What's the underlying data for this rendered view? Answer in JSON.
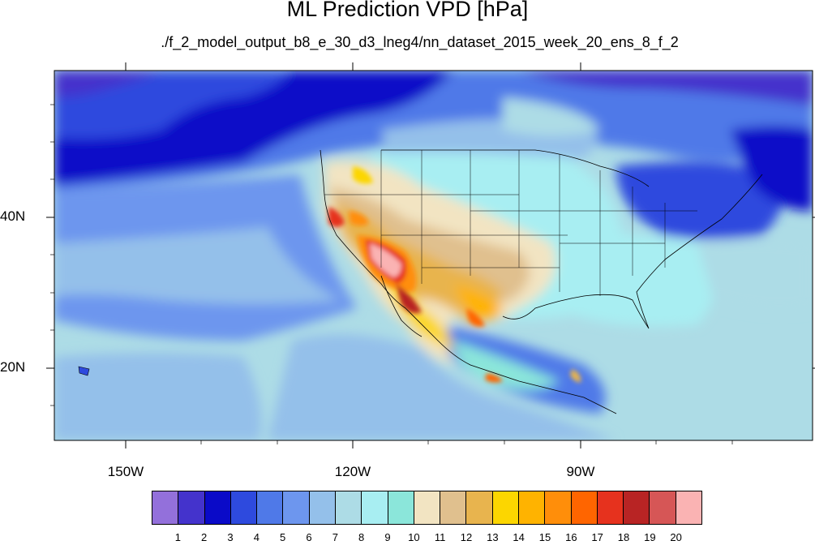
{
  "title": "ML Prediction VPD [hPa]",
  "subtitle": "./f_2_model_output_b8_e_30_d3_lneg4/nn_dataset_2015_week_20_ens_8_f_2",
  "lat_labels": [
    "40N",
    "20N"
  ],
  "lon_labels": [
    "150W",
    "120W",
    "90W"
  ],
  "colorbar": {
    "colors": [
      "#9370DB",
      "#4433CC",
      "#0A0AC8",
      "#2E4ADE",
      "#4F79E8",
      "#6D96EE",
      "#94C0EA",
      "#ADDCE6",
      "#A8EEF2",
      "#8BE6DA",
      "#F2E4C2",
      "#E0C08E",
      "#E8B44E",
      "#FCD600",
      "#FFB300",
      "#FF8E0A",
      "#FF6500",
      "#E6321E",
      "#B82424",
      "#D65656",
      "#FAB3B3"
    ],
    "labels": [
      "1",
      "2",
      "3",
      "4",
      "5",
      "6",
      "7",
      "8",
      "9",
      "10",
      "11",
      "12",
      "13",
      "14",
      "15",
      "16",
      "17",
      "18",
      "19",
      "20"
    ]
  }
}
